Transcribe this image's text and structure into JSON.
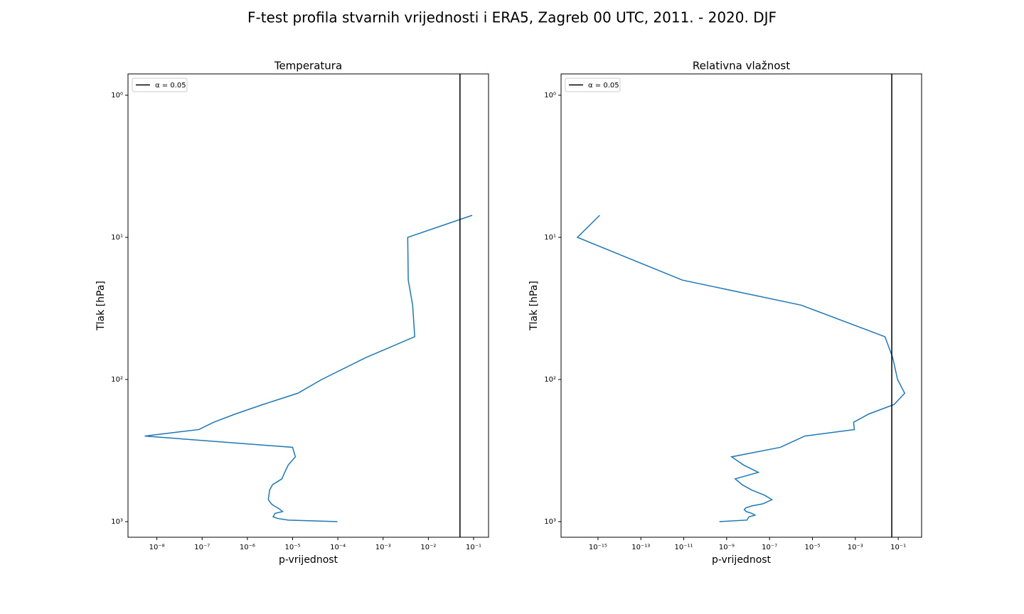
{
  "title": "F-test profila stvarnih vrijednosti i ERA5, Zagreb 00 UTC, 2011. - 2020. DJF",
  "chart_data": [
    {
      "type": "line",
      "title": "Temperatura",
      "x_label": "p-vrijednost",
      "y_label": "Tlak [hPa]",
      "log_x": true,
      "log_y": true,
      "xlim": [
        2.3e-09,
        0.214
      ],
      "ylim": [
        1288,
        0.708
      ],
      "xticks": [
        {
          "value": 1e-08,
          "label": "10⁻⁸"
        },
        {
          "value": 1e-07,
          "label": "10⁻⁷"
        },
        {
          "value": 1e-06,
          "label": "10⁻⁶"
        },
        {
          "value": 1e-05,
          "label": "10⁻⁵"
        },
        {
          "value": 0.0001,
          "label": "10⁻⁴"
        },
        {
          "value": 0.001,
          "label": "10⁻³"
        },
        {
          "value": 0.01,
          "label": "10⁻²"
        },
        {
          "value": 0.1,
          "label": "10⁻¹"
        }
      ],
      "yticks": [
        {
          "value": 1,
          "label": "10⁰"
        },
        {
          "value": 10,
          "label": "10¹"
        },
        {
          "value": 100,
          "label": "10²"
        },
        {
          "value": 1000,
          "label": "10³"
        }
      ],
      "legend_position": "upper left",
      "reference_lines": [
        {
          "name": "α = 0.05",
          "value": 0.05,
          "color": "#000000"
        }
      ],
      "levels": [
        7,
        10,
        20,
        30,
        50,
        70,
        100,
        125,
        150,
        175,
        200,
        225,
        250,
        300,
        350,
        400,
        450,
        500,
        550,
        600,
        650,
        700,
        750,
        775,
        800,
        825,
        850,
        875,
        900,
        925,
        950,
        975,
        1000
      ],
      "series": [
        {
          "color": "#1f77b4",
          "values": [
            0.093,
            0.0035,
            0.0036,
            0.0045,
            0.005,
            0.00042,
            4.4e-05,
            1.3e-05,
            2.2e-06,
            5.4e-07,
            1.8e-07,
            8.5e-08,
            5.4e-09,
            1e-05,
            1.15e-05,
            8e-06,
            6.7e-06,
            5.8e-06,
            3.6e-06,
            3.1e-06,
            3e-06,
            2.9e-06,
            3.4e-06,
            3.9e-06,
            4.7e-06,
            5.4e-06,
            6e-06,
            4.1e-06,
            3.9e-06,
            3.7e-06,
            4.7e-06,
            8e-06,
            9.8e-05
          ]
        }
      ]
    },
    {
      "type": "line",
      "title": "Relativna vlažnost",
      "x_label": "p-vrijednost",
      "y_label": "Tlak [hPa]",
      "log_x": true,
      "log_y": true,
      "xlim": [
        1.9e-17,
        1.23
      ],
      "ylim": [
        1288,
        0.708
      ],
      "xticks": [
        {
          "value": 1e-15,
          "label": "10⁻¹⁵"
        },
        {
          "value": 1e-13,
          "label": "10⁻¹³"
        },
        {
          "value": 1e-11,
          "label": "10⁻¹¹"
        },
        {
          "value": 1e-09,
          "label": "10⁻⁹"
        },
        {
          "value": 1e-07,
          "label": "10⁻⁷"
        },
        {
          "value": 1e-05,
          "label": "10⁻⁵"
        },
        {
          "value": 0.001,
          "label": "10⁻³"
        },
        {
          "value": 0.1,
          "label": "10⁻¹"
        }
      ],
      "yticks": [
        {
          "value": 1,
          "label": "10⁰"
        },
        {
          "value": 10,
          "label": "10¹"
        },
        {
          "value": 100,
          "label": "10²"
        },
        {
          "value": 1000,
          "label": "10³"
        }
      ],
      "legend_position": "upper left",
      "reference_lines": [
        {
          "name": "α = 0.05",
          "value": 0.05,
          "color": "#000000"
        }
      ],
      "levels": [
        7,
        10,
        20,
        30,
        50,
        70,
        100,
        125,
        150,
        175,
        200,
        225,
        250,
        300,
        350,
        400,
        450,
        500,
        550,
        600,
        650,
        700,
        750,
        775,
        800,
        825,
        850,
        875,
        900,
        925,
        950,
        975,
        1000
      ],
      "series": [
        {
          "color": "#1f77b4",
          "values": [
            1.2e-15,
            1.1e-16,
            8.7e-12,
            3e-06,
            0.024,
            0.055,
            0.093,
            0.2,
            0.064,
            0.0042,
            0.00083,
            0.0009,
            4.4e-06,
            3.2e-07,
            1.7e-09,
            6.2e-09,
            3e-08,
            2.5e-09,
            5.3e-09,
            1.5e-08,
            5.6e-08,
            1.3e-07,
            4.8e-08,
            1.5e-08,
            7.8e-09,
            6.6e-09,
            8.3e-09,
            1.5e-08,
            2.1e-08,
            1.1e-08,
            9.7e-09,
            9e-09,
            4.6e-10
          ]
        }
      ]
    }
  ]
}
